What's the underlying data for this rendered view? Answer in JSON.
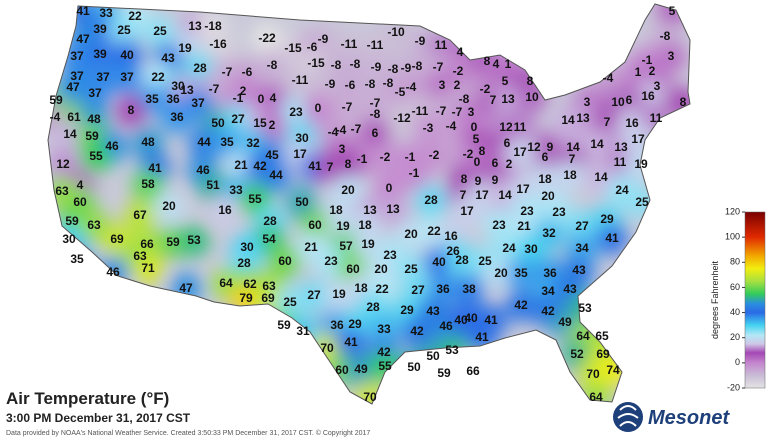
{
  "title": "Air Temperature (°F)",
  "subtitle": "3:00 PM December 31, 2017 CST",
  "credit": "Data provided by NOAA's National Weather Service. Created 3:50:33 PM December 31, 2017 CST. © Copyright 2017",
  "logo": "Mesonet",
  "legend": {
    "label": "degrees Fahrenheit",
    "lim": [
      -20,
      120
    ],
    "ticks": [
      -20,
      0,
      20,
      40,
      60,
      80,
      100,
      120
    ],
    "colorscale": [
      [
        -20,
        "#e4e4e4"
      ],
      [
        -10,
        "#c9bcd6"
      ],
      [
        0,
        "#c486cf"
      ],
      [
        8,
        "#a448b4"
      ],
      [
        15,
        "#cfc6e6"
      ],
      [
        22,
        "#b4e8f6"
      ],
      [
        30,
        "#44d2f0"
      ],
      [
        40,
        "#2a6ae6"
      ],
      [
        47,
        "#2a8ee0"
      ],
      [
        55,
        "#34cc5a"
      ],
      [
        65,
        "#a8e040"
      ],
      [
        75,
        "#f2ee10"
      ],
      [
        85,
        "#f2a800"
      ],
      [
        100,
        "#e02a00"
      ],
      [
        120,
        "#7a0000"
      ]
    ]
  },
  "temperatures": [
    41,
    33,
    22,
    13,
    -18,
    25,
    39,
    25,
    47,
    19,
    -16,
    -22,
    -9,
    -10,
    -9,
    -11,
    -11,
    -15,
    -6,
    11,
    4,
    5,
    -8,
    37,
    39,
    40,
    43,
    28,
    -7,
    -6,
    -8,
    -15,
    -8,
    -8,
    -9,
    -8,
    -9,
    -8,
    -7,
    -2,
    8,
    4,
    1,
    3,
    -1,
    1,
    2,
    -4,
    37,
    37,
    37,
    22,
    30,
    -7,
    2,
    -11,
    -9,
    -6,
    -8,
    -8,
    -5,
    -4,
    3,
    2,
    5,
    -2,
    8,
    59,
    47,
    37,
    35,
    36,
    13,
    -1,
    0,
    4,
    3,
    8,
    16,
    6,
    10,
    3,
    7,
    13,
    10,
    8,
    36,
    37,
    23,
    0,
    -7,
    -8,
    -12,
    -11,
    -7,
    -7,
    -7,
    -8,
    -4,
    61,
    48,
    50,
    27,
    15,
    2,
    3,
    12,
    11,
    14,
    13,
    7,
    16,
    11,
    14,
    59,
    46,
    48,
    44,
    35,
    32,
    30,
    -4,
    -4,
    -7,
    6,
    -3,
    -4,
    0,
    5,
    6,
    12,
    9,
    14,
    14,
    13,
    17,
    12,
    55,
    41,
    45,
    17,
    3,
    -1,
    -2,
    -1,
    -2,
    -2,
    8,
    0,
    6,
    2,
    6,
    17,
    7,
    11,
    19,
    21,
    42,
    41,
    7,
    8,
    4,
    60,
    63,
    58,
    46,
    51,
    33,
    44,
    20,
    0,
    -1,
    8,
    9,
    9,
    7,
    17,
    14,
    17,
    20,
    18,
    18,
    14,
    24,
    25,
    28,
    17,
    18,
    13,
    13,
    16,
    55,
    50,
    28,
    20,
    59,
    63,
    67,
    60,
    19,
    18,
    20,
    22,
    23,
    23,
    23,
    21,
    32,
    27,
    29,
    30,
    69,
    66,
    59,
    53,
    54,
    30,
    57,
    19,
    21,
    16,
    24,
    30,
    34,
    41,
    35,
    63,
    60,
    23,
    23,
    26,
    40,
    28,
    25,
    28,
    60,
    20,
    25,
    20,
    35,
    36,
    43,
    46,
    71,
    64,
    62,
    63,
    27,
    19,
    18,
    22,
    27,
    36,
    38,
    34,
    43,
    47,
    79,
    69,
    25,
    28,
    29,
    43,
    40,
    41,
    42,
    42,
    53,
    59,
    31,
    36,
    29,
    33,
    42,
    46,
    40,
    41,
    49,
    65,
    64,
    70,
    41,
    42,
    53,
    50,
    52,
    69,
    60,
    49,
    55,
    50,
    59,
    66,
    70,
    74,
    70,
    64,
    70
  ]
}
